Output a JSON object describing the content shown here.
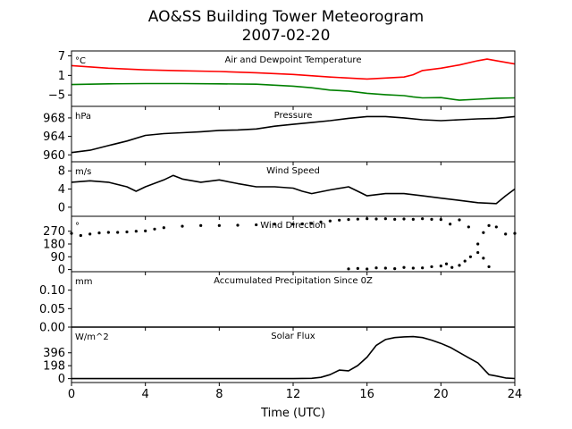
{
  "figure": {
    "title": "AO&SS Building Tower Meteorogram",
    "subtitle": "2007-02-20",
    "xlabel": "Time (UTC)"
  },
  "chart_data": [
    {
      "type": "line",
      "title": "Air and Dewpoint Temperature",
      "unit": "°C",
      "ylim": [
        -8.5,
        8.5
      ],
      "yticks": [
        7,
        1,
        -5
      ],
      "xlim": [
        0,
        24
      ],
      "xticks": [
        0,
        4,
        8,
        12,
        16,
        20,
        24
      ],
      "series": [
        {
          "color": "#ff0000",
          "x": [
            0,
            2,
            4,
            6,
            8,
            10,
            12,
            14,
            15,
            16,
            17,
            18,
            18.5,
            19,
            20,
            21,
            22,
            22.5,
            23,
            24
          ],
          "y": [
            4.0,
            3.2,
            2.7,
            2.4,
            2.2,
            1.8,
            1.3,
            0.5,
            0.2,
            -0.1,
            0.2,
            0.5,
            1.2,
            2.5,
            3.2,
            4.2,
            5.5,
            6.0,
            5.5,
            4.5
          ]
        },
        {
          "color": "#008000",
          "x": [
            0,
            2,
            4,
            6,
            8,
            10,
            11,
            12,
            13,
            14,
            15,
            16,
            17,
            18,
            18.5,
            19,
            20,
            21,
            22,
            23,
            24
          ],
          "y": [
            -1.8,
            -1.6,
            -1.5,
            -1.5,
            -1.6,
            -1.7,
            -2.0,
            -2.3,
            -2.8,
            -3.5,
            -3.8,
            -4.5,
            -4.9,
            -5.2,
            -5.6,
            -5.9,
            -5.8,
            -6.6,
            -6.3,
            -6.0,
            -5.9
          ]
        }
      ]
    },
    {
      "type": "line",
      "title": "Pressure",
      "unit": "hPa",
      "ylim": [
        958.5,
        970.5
      ],
      "yticks": [
        968,
        964,
        960
      ],
      "xlim": [
        0,
        24
      ],
      "series": [
        {
          "color": "#000000",
          "x": [
            0,
            1,
            2,
            3,
            4,
            5,
            6,
            7,
            8,
            9,
            10,
            11,
            12,
            13,
            14,
            15,
            16,
            17,
            18,
            19,
            20,
            21,
            22,
            23,
            24
          ],
          "y": [
            960.5,
            961.0,
            962.0,
            963.0,
            964.2,
            964.6,
            964.8,
            965.0,
            965.3,
            965.4,
            965.6,
            966.2,
            966.6,
            967.0,
            967.4,
            967.9,
            968.3,
            968.3,
            968.0,
            967.6,
            967.4,
            967.6,
            967.8,
            967.9,
            968.3
          ]
        }
      ]
    },
    {
      "type": "line",
      "title": "Wind Speed",
      "unit": "m/s",
      "ylim": [
        -2,
        10
      ],
      "yticks": [
        8,
        4,
        0
      ],
      "xlim": [
        0,
        24
      ],
      "series": [
        {
          "color": "#000000",
          "x": [
            0,
            1,
            2,
            3,
            3.5,
            4,
            5,
            5.5,
            6,
            7,
            8,
            9,
            10,
            11,
            12,
            12.5,
            13,
            14,
            15,
            15.5,
            16,
            17,
            18,
            19,
            20,
            21,
            22,
            23,
            23.5,
            24
          ],
          "y": [
            5.5,
            5.8,
            5.5,
            4.5,
            3.5,
            4.5,
            6.0,
            7.0,
            6.2,
            5.5,
            6.0,
            5.2,
            4.5,
            4.5,
            4.2,
            3.5,
            3.0,
            3.8,
            4.5,
            3.5,
            2.5,
            3.0,
            3.0,
            2.5,
            2.0,
            1.5,
            1.0,
            0.8,
            2.5,
            4.0
          ]
        }
      ]
    },
    {
      "type": "scatter",
      "title": "Wind Direction",
      "unit": "°",
      "ylim": [
        -15,
        375
      ],
      "yticks": [
        270,
        180,
        90,
        0
      ],
      "xlim": [
        0,
        24
      ],
      "series": [
        {
          "color": "#000000",
          "x": [
            0,
            0.5,
            1,
            1.5,
            2,
            2.5,
            3,
            3.5,
            4,
            4.5,
            5,
            6,
            7,
            8,
            9,
            10,
            11,
            12,
            12.5,
            13,
            13.5,
            14,
            14.5,
            15,
            15.5,
            16,
            16.5,
            17,
            17.5,
            18,
            18.5,
            19,
            19.5,
            20,
            20.5,
            21,
            21.5,
            22,
            22.3,
            22.6,
            23,
            23.5,
            24
          ],
          "y": [
            255,
            240,
            250,
            258,
            262,
            262,
            265,
            270,
            272,
            285,
            295,
            305,
            310,
            310,
            312,
            315,
            320,
            320,
            322,
            325,
            335,
            342,
            348,
            352,
            355,
            358,
            356,
            358,
            354,
            356,
            354,
            358,
            354,
            352,
            320,
            350,
            300,
            180,
            260,
            310,
            300,
            250,
            255
          ]
        },
        {
          "color": "#000000",
          "x": [
            15,
            15.5,
            16,
            16.5,
            17,
            17.5,
            18,
            18.5,
            19,
            19.5,
            20,
            20.3,
            20.6,
            21,
            21.3,
            21.6,
            22,
            22.3,
            22.6
          ],
          "y": [
            5,
            8,
            4,
            12,
            10,
            6,
            15,
            10,
            12,
            20,
            25,
            40,
            15,
            30,
            60,
            90,
            120,
            80,
            20
          ]
        }
      ]
    },
    {
      "type": "line",
      "title": "Accumulated Precipitation Since 0Z",
      "unit": "mm",
      "ylim": [
        0,
        0.15
      ],
      "yticks": [
        0.1,
        0.05,
        0.0
      ],
      "ytick_labels": [
        "0.10",
        "0.05",
        "0.00"
      ],
      "xlim": [
        0,
        24
      ],
      "series": [
        {
          "color": "#000000",
          "x": [
            0,
            24
          ],
          "y": [
            0,
            0
          ]
        }
      ]
    },
    {
      "type": "line",
      "title": "Solar Flux",
      "unit": "W/m^2",
      "ylim": [
        -60,
        790
      ],
      "yticks": [
        396,
        198,
        0
      ],
      "xlim": [
        0,
        24
      ],
      "series": [
        {
          "color": "#000000",
          "x": [
            0,
            12,
            13,
            13.5,
            14,
            14.5,
            15,
            15.5,
            16,
            16.5,
            17,
            17.5,
            18,
            18.5,
            19,
            19.5,
            20,
            20.5,
            21,
            21.5,
            22,
            22.3,
            22.6,
            23,
            23.5,
            24
          ],
          "y": [
            0,
            0,
            5,
            20,
            60,
            130,
            120,
            200,
            330,
            510,
            600,
            630,
            640,
            645,
            630,
            590,
            540,
            480,
            400,
            320,
            240,
            150,
            60,
            40,
            10,
            2
          ]
        }
      ]
    }
  ]
}
